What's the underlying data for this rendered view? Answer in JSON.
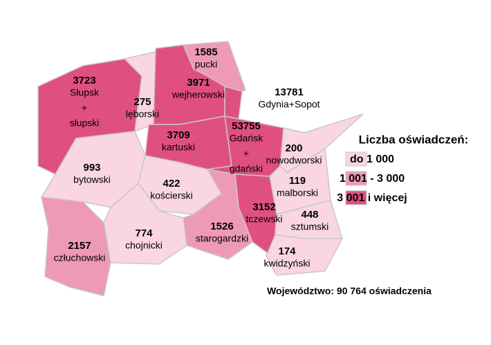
{
  "regions": [
    {
      "value": 3723,
      "name": [
        "Słupsk",
        "+",
        "słupski"
      ],
      "color": "#e0507f"
    },
    {
      "value": 275,
      "name": [
        "lęborski"
      ],
      "color": "#f9d6e2"
    },
    {
      "value": 1585,
      "name": [
        "pucki"
      ],
      "color": "#ee9ab5"
    },
    {
      "value": 3971,
      "name": [
        "wejherowski"
      ],
      "color": "#e0507f"
    },
    {
      "value": 13781,
      "name": [
        "Gdynia+Sopot"
      ],
      "color": "#e0507f"
    },
    {
      "value": 3709,
      "name": [
        "kartuski"
      ],
      "color": "#e0507f"
    },
    {
      "value": 53755,
      "name": [
        "Gdańsk",
        "+",
        "gdański"
      ],
      "color": "#e0507f"
    },
    {
      "value": 200,
      "name": [
        "nowodworski"
      ],
      "color": "#f9d6e2"
    },
    {
      "value": 119,
      "name": [
        "malborski"
      ],
      "color": "#f9d6e2"
    },
    {
      "value": 993,
      "name": [
        "bytowski"
      ],
      "color": "#f9d6e2"
    },
    {
      "value": 422,
      "name": [
        "kościerski"
      ],
      "color": "#f9d6e2"
    },
    {
      "value": 3152,
      "name": [
        "tczewski"
      ],
      "color": "#e0507f"
    },
    {
      "value": 448,
      "name": [
        "sztumski"
      ],
      "color": "#f9d6e2"
    },
    {
      "value": 774,
      "name": [
        "chojnicki"
      ],
      "color": "#f9d6e2"
    },
    {
      "value": 1526,
      "name": [
        "starogardzki"
      ],
      "color": "#ee9ab5"
    },
    {
      "value": 2157,
      "name": [
        "człuchowski"
      ],
      "color": "#ee9ab5"
    },
    {
      "value": 174,
      "name": [
        "kwidzyński"
      ],
      "color": "#f9d6e2"
    }
  ],
  "legend": {
    "title": "Liczba oświadczeń:",
    "classes": [
      {
        "label": "do 1 000",
        "color": "#f9d6e2"
      },
      {
        "label": "1 001 - 3 000",
        "color": "#ee9ab5"
      },
      {
        "label": "3 001 i więcej",
        "color": "#e0507f"
      }
    ]
  },
  "total": "Województwo: 90 764 oświadczenia"
}
